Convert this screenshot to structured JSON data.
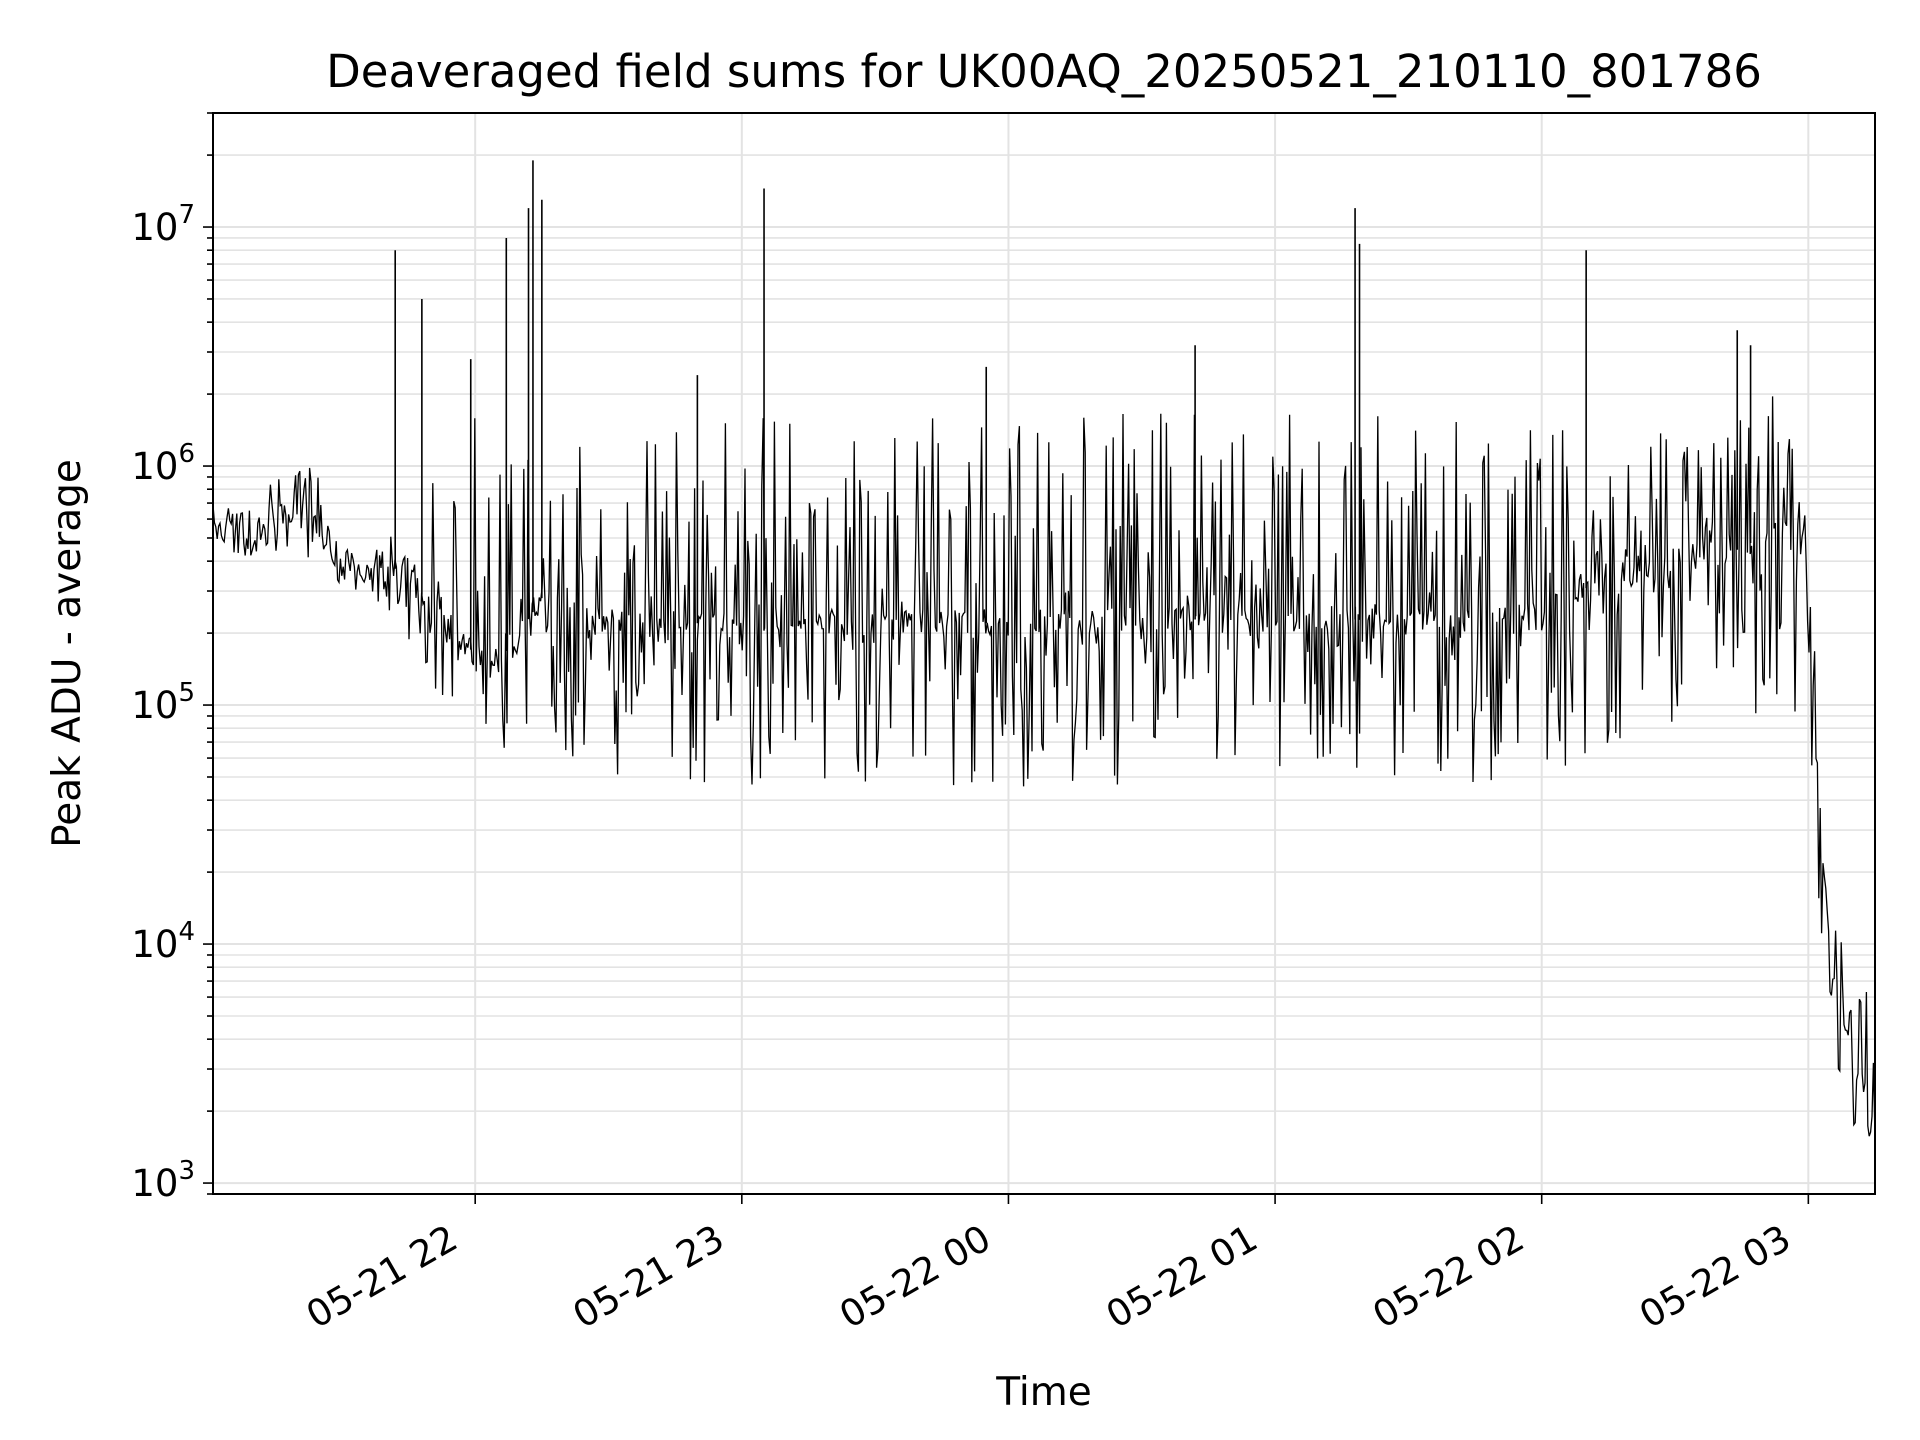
{
  "chart_data": {
    "type": "line",
    "title": "Deaveraged field sums for UK00AQ_20250521_210110_801786",
    "xlabel": "Time",
    "ylabel": "Peak ADU - average",
    "yscale": "log",
    "ylim": [
      900,
      30000000
    ],
    "xlim": [
      "2025-05-21 21:01",
      "2025-05-22 03:15"
    ],
    "grid": true,
    "line_color": "#000000",
    "x_ticks": [
      {
        "value": "2025-05-21 22:00",
        "label": "05-21 22"
      },
      {
        "value": "2025-05-21 23:00",
        "label": "05-21 23"
      },
      {
        "value": "2025-05-22 00:00",
        "label": "05-22 00"
      },
      {
        "value": "2025-05-22 01:00",
        "label": "05-22 01"
      },
      {
        "value": "2025-05-22 02:00",
        "label": "05-22 02"
      },
      {
        "value": "2025-05-22 03:00",
        "label": "05-22 03"
      }
    ],
    "y_ticks": [
      {
        "value": 1000,
        "base": "10",
        "exp": "3"
      },
      {
        "value": 10000,
        "base": "10",
        "exp": "4"
      },
      {
        "value": 100000,
        "base": "10",
        "exp": "5"
      },
      {
        "value": 1000000,
        "base": "10",
        "exp": "6"
      },
      {
        "value": 10000000,
        "base": "10",
        "exp": "7"
      }
    ],
    "series": [
      {
        "x": [
          "2025-05-21 21:01",
          "2025-05-21 21:05",
          "2025-05-21 21:10",
          "2025-05-21 21:15",
          "2025-05-21 21:20",
          "2025-05-21 21:25",
          "2025-05-21 21:30",
          "2025-05-21 21:35",
          "2025-05-21 21:40",
          "2025-05-21 21:45",
          "2025-05-21 21:50",
          "2025-05-21 21:55",
          "2025-05-21 22:00",
          "2025-05-21 22:05",
          "2025-05-21 22:10",
          "2025-05-21 22:15",
          "2025-05-21 22:20",
          "2025-05-21 22:30",
          "2025-05-21 22:40",
          "2025-05-21 22:50",
          "2025-05-21 23:00",
          "2025-05-21 23:10",
          "2025-05-21 23:20",
          "2025-05-21 23:30",
          "2025-05-21 23:40",
          "2025-05-21 23:50",
          "2025-05-22 00:00",
          "2025-05-22 00:15",
          "2025-05-22 00:30",
          "2025-05-22 00:45",
          "2025-05-22 01:00",
          "2025-05-22 01:15",
          "2025-05-22 01:30",
          "2025-05-22 01:45",
          "2025-05-22 02:00",
          "2025-05-22 02:15",
          "2025-05-22 02:30",
          "2025-05-22 02:45",
          "2025-05-22 02:55",
          "2025-05-22 03:00",
          "2025-05-22 03:05",
          "2025-05-22 03:10",
          "2025-05-22 03:15"
        ],
        "y": [
          550000,
          560000,
          580000,
          600000,
          650000,
          520000,
          400000,
          330000,
          380000,
          360000,
          250000,
          220000,
          160000,
          150000,
          200000,
          280000,
          250000,
          220000,
          210000,
          220000,
          210000,
          200000,
          220000,
          210000,
          230000,
          220000,
          220000,
          230000,
          220000,
          230000,
          210000,
          230000,
          220000,
          220000,
          240000,
          350000,
          400000,
          450000,
          600000,
          200000,
          8000,
          3000,
          2000
        ],
        "low": [
          350000,
          380000,
          400000,
          420000,
          420000,
          400000,
          300000,
          280000,
          250000,
          180000,
          120000,
          100000,
          80000,
          60000,
          55000,
          55000,
          50000,
          50000,
          48000,
          48000,
          45000,
          48000,
          47000,
          45000,
          46000,
          45000,
          45000,
          47000,
          46000,
          45000,
          43000,
          46000,
          45000,
          45000,
          47000,
          60000,
          80000,
          90000,
          60000,
          30000,
          4000,
          1600,
          1500
        ],
        "high": [
          700000,
          800000,
          900000,
          900000,
          950000,
          1100000,
          500000,
          400000,
          500000,
          600000,
          900000,
          1500000,
          1800000,
          1900000,
          1200000,
          1500000,
          1600000,
          1700000,
          1800000,
          1700000,
          1600000,
          1800000,
          1800000,
          1800000,
          1700000,
          1800000,
          1800000,
          1700000,
          1800000,
          1700000,
          1800000,
          1700000,
          1800000,
          1700000,
          1700000,
          1800000,
          1800000,
          1900000,
          2000000,
          500000,
          15000,
          7000,
          6000
        ]
      }
    ],
    "spikes": [
      {
        "x": "2025-05-21 21:42",
        "y": 8000000
      },
      {
        "x": "2025-05-21 21:48",
        "y": 5000000
      },
      {
        "x": "2025-05-21 21:59",
        "y": 2800000
      },
      {
        "x": "2025-05-21 22:07",
        "y": 9000000
      },
      {
        "x": "2025-05-21 22:12",
        "y": 12000000
      },
      {
        "x": "2025-05-21 22:13",
        "y": 19000000
      },
      {
        "x": "2025-05-21 22:15",
        "y": 13000000
      },
      {
        "x": "2025-05-21 22:50",
        "y": 2400000
      },
      {
        "x": "2025-05-21 23:05",
        "y": 14500000
      },
      {
        "x": "2025-05-21 23:55",
        "y": 2600000
      },
      {
        "x": "2025-05-22 00:42",
        "y": 3200000
      },
      {
        "x": "2025-05-22 01:18",
        "y": 12000000
      },
      {
        "x": "2025-05-22 01:19",
        "y": 8500000
      },
      {
        "x": "2025-05-22 02:10",
        "y": 8000000
      },
      {
        "x": "2025-05-22 02:44",
        "y": 3700000
      },
      {
        "x": "2025-05-22 02:47",
        "y": 3200000
      }
    ]
  }
}
